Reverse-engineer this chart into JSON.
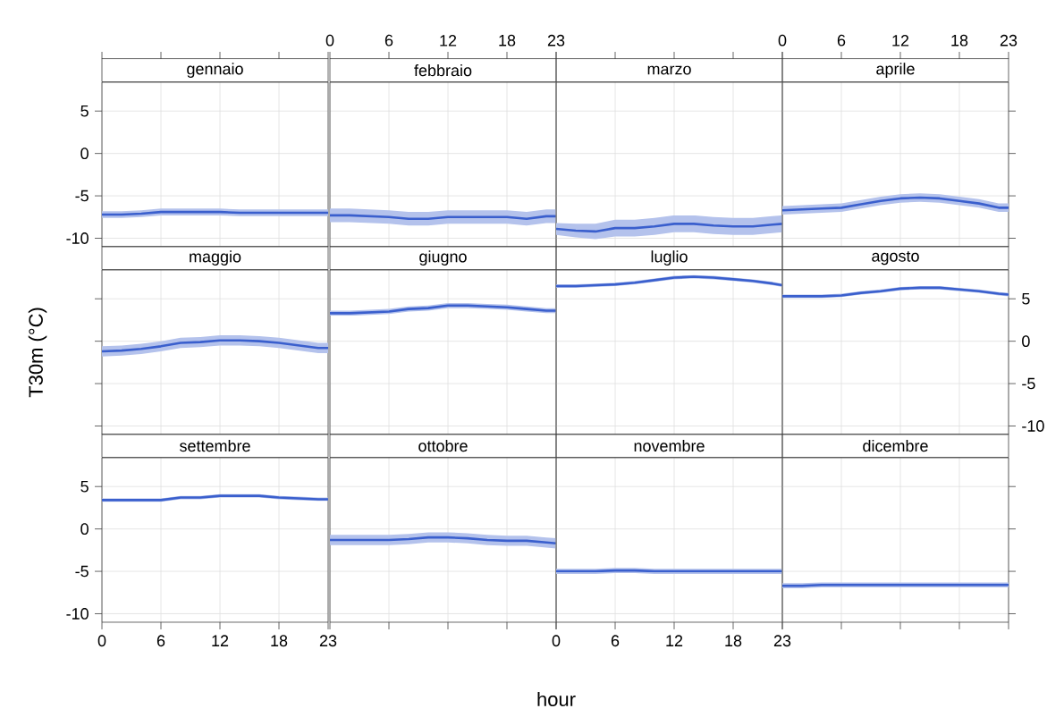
{
  "chart_data": [
    {
      "type": "line",
      "title": "gennaio",
      "x": [
        0,
        2,
        4,
        6,
        8,
        10,
        12,
        14,
        16,
        18,
        20,
        22,
        23
      ],
      "xlim": [
        0,
        23
      ],
      "xticks": [
        0,
        6,
        12,
        18,
        23
      ],
      "ylim": [
        -11,
        8.4
      ],
      "yticks": [
        -10,
        -5,
        0,
        5
      ],
      "grid": true,
      "tick_labels": "y",
      "series": [
        {
          "color": "#3a5fcd",
          "values": [
            -7.2,
            -7.2,
            -7.1,
            -6.9,
            -6.9,
            -6.9,
            -6.9,
            -7.0,
            -7.0,
            -7.0,
            -7.0,
            -7.0,
            -7.0
          ],
          "lower": [
            -7.6,
            -7.6,
            -7.5,
            -7.3,
            -7.3,
            -7.3,
            -7.3,
            -7.4,
            -7.4,
            -7.4,
            -7.4,
            -7.4,
            -7.4
          ],
          "upper": [
            -6.8,
            -6.8,
            -6.7,
            -6.5,
            -6.5,
            -6.5,
            -6.5,
            -6.6,
            -6.6,
            -6.6,
            -6.6,
            -6.6,
            -6.6
          ]
        }
      ]
    },
    {
      "type": "line",
      "title": "febbraio",
      "x": [
        0,
        2,
        4,
        6,
        8,
        10,
        12,
        14,
        16,
        18,
        20,
        22,
        23
      ],
      "xlim": [
        0,
        23
      ],
      "xticks": [
        0,
        6,
        12,
        18,
        23
      ],
      "ylim": [
        -11,
        8.4
      ],
      "yticks": [
        -10,
        -5,
        0,
        5
      ],
      "grid": true,
      "tick_labels": "x",
      "series": [
        {
          "color": "#3a5fcd",
          "values": [
            -7.3,
            -7.3,
            -7.4,
            -7.5,
            -7.7,
            -7.7,
            -7.5,
            -7.5,
            -7.5,
            -7.5,
            -7.7,
            -7.4,
            -7.4
          ],
          "lower": [
            -8.1,
            -8.1,
            -8.2,
            -8.3,
            -8.5,
            -8.5,
            -8.3,
            -8.3,
            -8.3,
            -8.3,
            -8.5,
            -8.2,
            -8.2
          ],
          "upper": [
            -6.5,
            -6.5,
            -6.6,
            -6.7,
            -6.9,
            -6.9,
            -6.7,
            -6.7,
            -6.7,
            -6.7,
            -6.9,
            -6.6,
            -6.6
          ]
        }
      ]
    },
    {
      "type": "line",
      "title": "marzo",
      "x": [
        0,
        2,
        4,
        6,
        8,
        10,
        12,
        14,
        16,
        18,
        20,
        22,
        23
      ],
      "xlim": [
        0,
        23
      ],
      "xticks": [
        0,
        6,
        12,
        18,
        23
      ],
      "ylim": [
        -11,
        8.4
      ],
      "yticks": [
        -10,
        -5,
        0,
        5
      ],
      "grid": true,
      "tick_labels": false,
      "series": [
        {
          "color": "#3a5fcd",
          "values": [
            -8.9,
            -9.1,
            -9.2,
            -8.8,
            -8.8,
            -8.6,
            -8.3,
            -8.3,
            -8.5,
            -8.6,
            -8.6,
            -8.4,
            -8.3
          ],
          "lower": [
            -9.6,
            -9.9,
            -10.1,
            -9.8,
            -9.8,
            -9.6,
            -9.3,
            -9.3,
            -9.5,
            -9.6,
            -9.6,
            -9.4,
            -9.3
          ],
          "upper": [
            -8.2,
            -8.3,
            -8.3,
            -7.8,
            -7.8,
            -7.6,
            -7.3,
            -7.3,
            -7.5,
            -7.6,
            -7.6,
            -7.4,
            -7.3
          ]
        }
      ]
    },
    {
      "type": "line",
      "title": "aprile",
      "x": [
        0,
        2,
        4,
        6,
        8,
        10,
        12,
        14,
        16,
        18,
        20,
        22,
        23
      ],
      "xlim": [
        0,
        23
      ],
      "xticks": [
        0,
        6,
        12,
        18,
        23
      ],
      "ylim": [
        -11,
        8.4
      ],
      "yticks": [
        -10,
        -5,
        0,
        5
      ],
      "grid": true,
      "tick_labels": "x",
      "series": [
        {
          "color": "#3a5fcd",
          "values": [
            -6.7,
            -6.6,
            -6.5,
            -6.4,
            -6.0,
            -5.6,
            -5.3,
            -5.2,
            -5.3,
            -5.6,
            -5.9,
            -6.4,
            -6.4
          ],
          "lower": [
            -7.2,
            -7.1,
            -7.0,
            -6.9,
            -6.5,
            -6.1,
            -5.8,
            -5.7,
            -5.8,
            -6.1,
            -6.4,
            -6.9,
            -6.9
          ],
          "upper": [
            -6.2,
            -6.1,
            -6.0,
            -5.9,
            -5.5,
            -5.1,
            -4.8,
            -4.7,
            -4.8,
            -5.1,
            -5.4,
            -5.9,
            -5.9
          ]
        }
      ]
    },
    {
      "type": "line",
      "title": "maggio",
      "ylabel": "T30m (°C)",
      "x": [
        0,
        2,
        4,
        6,
        8,
        10,
        12,
        14,
        16,
        18,
        20,
        22,
        23
      ],
      "xlim": [
        0,
        23
      ],
      "xticks": [
        0,
        6,
        12,
        18,
        23
      ],
      "ylim": [
        -11,
        8.4
      ],
      "yticks": [
        -10,
        -5,
        0,
        5
      ],
      "grid": true,
      "tick_labels": false,
      "series": [
        {
          "color": "#3a5fcd",
          "values": [
            -1.2,
            -1.1,
            -0.9,
            -0.6,
            -0.2,
            -0.1,
            0.1,
            0.1,
            0.0,
            -0.2,
            -0.5,
            -0.8,
            -0.8
          ],
          "lower": [
            -1.8,
            -1.7,
            -1.5,
            -1.2,
            -0.8,
            -0.7,
            -0.5,
            -0.5,
            -0.6,
            -0.8,
            -1.1,
            -1.4,
            -1.4
          ],
          "upper": [
            -0.6,
            -0.5,
            -0.3,
            0.0,
            0.4,
            0.5,
            0.7,
            0.7,
            0.6,
            0.4,
            0.1,
            -0.2,
            -0.2
          ]
        }
      ]
    },
    {
      "type": "line",
      "title": "giugno",
      "x": [
        0,
        2,
        4,
        6,
        8,
        10,
        12,
        14,
        16,
        18,
        20,
        22,
        23
      ],
      "xlim": [
        0,
        23
      ],
      "xticks": [
        0,
        6,
        12,
        18,
        23
      ],
      "ylim": [
        -11,
        8.4
      ],
      "yticks": [
        -10,
        -5,
        0,
        5
      ],
      "grid": true,
      "tick_labels": false,
      "series": [
        {
          "color": "#3a5fcd",
          "values": [
            3.3,
            3.3,
            3.4,
            3.5,
            3.8,
            3.9,
            4.2,
            4.2,
            4.1,
            4.0,
            3.8,
            3.6,
            3.6
          ],
          "lower": [
            3.0,
            3.0,
            3.1,
            3.2,
            3.5,
            3.6,
            3.9,
            3.9,
            3.8,
            3.7,
            3.5,
            3.3,
            3.3
          ],
          "upper": [
            3.6,
            3.6,
            3.7,
            3.8,
            4.1,
            4.2,
            4.5,
            4.5,
            4.4,
            4.3,
            4.1,
            3.9,
            3.9
          ]
        }
      ]
    },
    {
      "type": "line",
      "title": "luglio",
      "x": [
        0,
        2,
        4,
        6,
        8,
        10,
        12,
        14,
        16,
        18,
        20,
        22,
        23
      ],
      "xlim": [
        0,
        23
      ],
      "xticks": [
        0,
        6,
        12,
        18,
        23
      ],
      "ylim": [
        -11,
        8.4
      ],
      "yticks": [
        -10,
        -5,
        0,
        5
      ],
      "grid": true,
      "tick_labels": false,
      "series": [
        {
          "color": "#3a5fcd",
          "values": [
            6.5,
            6.5,
            6.6,
            6.7,
            6.9,
            7.2,
            7.5,
            7.6,
            7.5,
            7.3,
            7.1,
            6.8,
            6.6
          ],
          "lower": [
            6.3,
            6.3,
            6.4,
            6.5,
            6.7,
            7.0,
            7.3,
            7.4,
            7.3,
            7.1,
            6.9,
            6.6,
            6.4
          ],
          "upper": [
            6.7,
            6.7,
            6.8,
            6.9,
            7.1,
            7.4,
            7.7,
            7.8,
            7.7,
            7.5,
            7.3,
            7.0,
            6.8
          ]
        }
      ]
    },
    {
      "type": "line",
      "title": "agosto",
      "x": [
        0,
        2,
        4,
        6,
        8,
        10,
        12,
        14,
        16,
        18,
        20,
        22,
        23
      ],
      "xlim": [
        0,
        23
      ],
      "xticks": [
        0,
        6,
        12,
        18,
        23
      ],
      "ylim": [
        -11,
        8.4
      ],
      "yticks": [
        -10,
        -5,
        0,
        5
      ],
      "grid": true,
      "tick_labels": "y",
      "series": [
        {
          "color": "#3a5fcd",
          "values": [
            5.3,
            5.3,
            5.3,
            5.4,
            5.7,
            5.9,
            6.2,
            6.3,
            6.3,
            6.1,
            5.9,
            5.6,
            5.5
          ],
          "lower": [
            5.1,
            5.1,
            5.1,
            5.2,
            5.5,
            5.7,
            6.0,
            6.1,
            6.1,
            5.9,
            5.7,
            5.4,
            5.3
          ],
          "upper": [
            5.5,
            5.5,
            5.5,
            5.6,
            5.9,
            6.1,
            6.4,
            6.5,
            6.5,
            6.3,
            6.1,
            5.8,
            5.7
          ]
        }
      ]
    },
    {
      "type": "line",
      "title": "settembre",
      "x": [
        0,
        2,
        4,
        6,
        8,
        10,
        12,
        14,
        16,
        18,
        20,
        22,
        23
      ],
      "xlim": [
        0,
        23
      ],
      "xticks": [
        0,
        6,
        12,
        18,
        23
      ],
      "ylim": [
        -11,
        8.4
      ],
      "yticks": [
        -10,
        -5,
        0,
        5
      ],
      "grid": true,
      "series": [
        {
          "color": "#3a5fcd",
          "values": [
            3.4,
            3.4,
            3.4,
            3.4,
            3.7,
            3.7,
            3.9,
            3.9,
            3.9,
            3.7,
            3.6,
            3.5,
            3.5
          ],
          "lower": [
            3.2,
            3.2,
            3.2,
            3.2,
            3.5,
            3.5,
            3.7,
            3.7,
            3.7,
            3.5,
            3.4,
            3.3,
            3.3
          ],
          "upper": [
            3.6,
            3.6,
            3.6,
            3.6,
            3.9,
            3.9,
            4.1,
            4.1,
            4.1,
            3.9,
            3.8,
            3.7,
            3.7
          ]
        }
      ]
    },
    {
      "type": "line",
      "title": "ottobre",
      "xlabel": "hour",
      "x": [
        0,
        2,
        4,
        6,
        8,
        10,
        12,
        14,
        16,
        18,
        20,
        22,
        23
      ],
      "xlim": [
        0,
        23
      ],
      "xticks": [
        0,
        6,
        12,
        18,
        23
      ],
      "ylim": [
        -11,
        8.4
      ],
      "yticks": [
        -10,
        -5,
        0,
        5
      ],
      "grid": true,
      "tick_labels": false,
      "series": [
        {
          "color": "#3a5fcd",
          "values": [
            -1.3,
            -1.3,
            -1.3,
            -1.3,
            -1.2,
            -1.0,
            -1.0,
            -1.1,
            -1.3,
            -1.4,
            -1.4,
            -1.6,
            -1.7
          ],
          "lower": [
            -1.9,
            -1.9,
            -1.9,
            -1.9,
            -1.8,
            -1.6,
            -1.6,
            -1.7,
            -1.9,
            -2.0,
            -2.0,
            -2.2,
            -2.3
          ],
          "upper": [
            -0.7,
            -0.7,
            -0.7,
            -0.7,
            -0.6,
            -0.4,
            -0.4,
            -0.5,
            -0.7,
            -0.8,
            -0.8,
            -1.0,
            -1.1
          ]
        }
      ]
    },
    {
      "type": "line",
      "title": "novembre",
      "x": [
        0,
        2,
        4,
        6,
        8,
        10,
        12,
        14,
        16,
        18,
        20,
        22,
        23
      ],
      "xlim": [
        0,
        23
      ],
      "xticks": [
        0,
        6,
        12,
        18,
        23
      ],
      "ylim": [
        -11,
        8.4
      ],
      "yticks": [
        -10,
        -5,
        0,
        5
      ],
      "grid": true,
      "tick_labels": "x",
      "series": [
        {
          "color": "#3a5fcd",
          "values": [
            -5.0,
            -5.0,
            -5.0,
            -4.9,
            -4.9,
            -5.0,
            -5.0,
            -5.0,
            -5.0,
            -5.0,
            -5.0,
            -5.0,
            -5.0
          ],
          "lower": [
            -5.3,
            -5.3,
            -5.3,
            -5.2,
            -5.2,
            -5.3,
            -5.3,
            -5.3,
            -5.3,
            -5.3,
            -5.3,
            -5.3,
            -5.3
          ],
          "upper": [
            -4.7,
            -4.7,
            -4.7,
            -4.6,
            -4.6,
            -4.7,
            -4.7,
            -4.7,
            -4.7,
            -4.7,
            -4.7,
            -4.7,
            -4.7
          ]
        }
      ]
    },
    {
      "type": "line",
      "title": "dicembre",
      "x": [
        0,
        2,
        4,
        6,
        8,
        10,
        12,
        14,
        16,
        18,
        20,
        22,
        23
      ],
      "xlim": [
        0,
        23
      ],
      "xticks": [
        0,
        6,
        12,
        18,
        23
      ],
      "ylim": [
        -11,
        8.4
      ],
      "yticks": [
        -10,
        -5,
        0,
        5
      ],
      "grid": true,
      "tick_labels": false,
      "series": [
        {
          "color": "#3a5fcd",
          "values": [
            -6.7,
            -6.7,
            -6.6,
            -6.6,
            -6.6,
            -6.6,
            -6.6,
            -6.6,
            -6.6,
            -6.6,
            -6.6,
            -6.6,
            -6.6
          ],
          "lower": [
            -7.0,
            -7.0,
            -6.9,
            -6.9,
            -6.9,
            -6.9,
            -6.9,
            -6.9,
            -6.9,
            -6.9,
            -6.9,
            -6.9,
            -6.9
          ],
          "upper": [
            -6.4,
            -6.4,
            -6.3,
            -6.3,
            -6.3,
            -6.3,
            -6.3,
            -6.3,
            -6.3,
            -6.3,
            -6.3,
            -6.3,
            -6.3
          ]
        }
      ]
    }
  ]
}
